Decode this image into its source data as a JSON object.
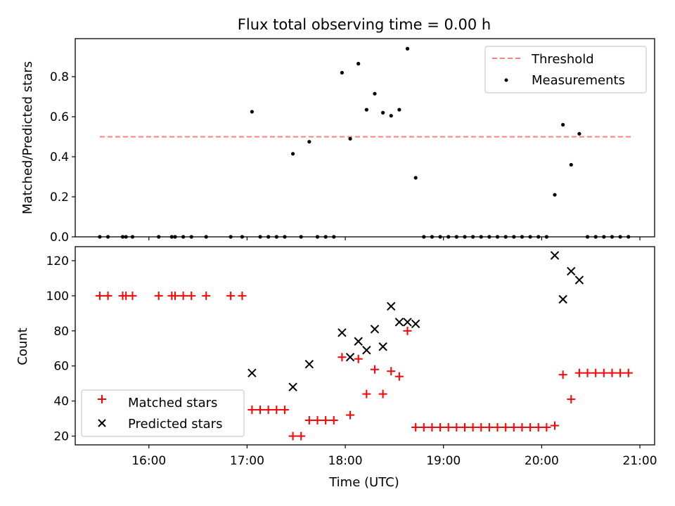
{
  "chart_data": [
    {
      "type": "scatter",
      "title": "Flux total observing time = 0.00 h",
      "xlabel": "",
      "ylabel": "Matched/Predicted stars",
      "xlim": [
        "15:15",
        "21:09"
      ],
      "ylim": [
        0,
        0.99
      ],
      "yticks": [
        0.0,
        0.2,
        0.4,
        0.6,
        0.8
      ],
      "legend_position": "top-right",
      "threshold": {
        "name": "Threshold",
        "value": 0.5,
        "x_range": [
          "15:30",
          "20:55"
        ],
        "color": "#ff7f7f",
        "style": "dashed"
      },
      "series": [
        {
          "name": "Measurements",
          "color": "#000000",
          "marker": "dot",
          "x": [
            "15:30",
            "15:35",
            "15:44",
            "15:46",
            "15:50",
            "16:06",
            "16:14",
            "16:16",
            "16:21",
            "16:26",
            "16:35",
            "16:50",
            "16:57",
            "17:03",
            "17:08",
            "17:13",
            "17:18",
            "17:23",
            "17:28",
            "17:33",
            "17:38",
            "17:43",
            "17:48",
            "17:53",
            "17:58",
            "18:03",
            "18:08",
            "18:13",
            "18:18",
            "18:23",
            "18:28",
            "18:33",
            "18:38",
            "18:43",
            "18:48",
            "18:53",
            "18:58",
            "19:03",
            "19:08",
            "19:13",
            "19:18",
            "19:23",
            "19:28",
            "19:33",
            "19:38",
            "19:43",
            "19:48",
            "19:53",
            "19:58",
            "20:03",
            "20:08",
            "20:13",
            "20:18",
            "20:23",
            "20:28",
            "20:33",
            "20:38",
            "20:43",
            "20:48",
            "20:53"
          ],
          "y": [
            0,
            0,
            0,
            0,
            0,
            0,
            0,
            0,
            0,
            0,
            0,
            0,
            0,
            0.625,
            0,
            0,
            0,
            0,
            0.415,
            0,
            0.475,
            0,
            0,
            0,
            0.82,
            0.49,
            0.865,
            0.635,
            0.715,
            0.62,
            0.605,
            0.635,
            0.94,
            0.295,
            0,
            0,
            0,
            0,
            0,
            0,
            0,
            0,
            0,
            0,
            0,
            0,
            0,
            0,
            0,
            0,
            0.21,
            0.56,
            0.36,
            0.515,
            0,
            0,
            0,
            0,
            0,
            0
          ]
        }
      ]
    },
    {
      "type": "scatter",
      "title": "",
      "xlabel": "Time (UTC)",
      "ylabel": "Count",
      "xlim": [
        "15:15",
        "21:09"
      ],
      "ylim": [
        15,
        128
      ],
      "yticks": [
        20,
        40,
        60,
        80,
        100,
        120
      ],
      "xticks": [
        "16:00",
        "17:00",
        "18:00",
        "19:00",
        "20:00",
        "21:00"
      ],
      "legend_position": "lower-left",
      "series": [
        {
          "name": "Matched stars",
          "color": "#ff0000",
          "marker": "plus",
          "x": [
            "15:30",
            "15:35",
            "15:44",
            "15:46",
            "15:50",
            "16:06",
            "16:14",
            "16:16",
            "16:21",
            "16:26",
            "16:35",
            "16:50",
            "16:57",
            "17:03",
            "17:08",
            "17:13",
            "17:18",
            "17:23",
            "17:28",
            "17:33",
            "17:38",
            "17:43",
            "17:48",
            "17:53",
            "17:58",
            "18:03",
            "18:08",
            "18:13",
            "18:18",
            "18:23",
            "18:28",
            "18:33",
            "18:38",
            "18:43",
            "18:48",
            "18:53",
            "18:58",
            "19:03",
            "19:08",
            "19:13",
            "19:18",
            "19:23",
            "19:28",
            "19:33",
            "19:38",
            "19:43",
            "19:48",
            "19:53",
            "19:58",
            "20:03",
            "20:08",
            "20:13",
            "20:18",
            "20:23",
            "20:28",
            "20:33",
            "20:38",
            "20:43",
            "20:48",
            "20:53"
          ],
          "y": [
            100,
            100,
            100,
            100,
            100,
            100,
            100,
            100,
            100,
            100,
            100,
            100,
            100,
            35,
            35,
            35,
            35,
            35,
            20,
            20,
            29,
            29,
            29,
            29,
            65,
            32,
            64,
            44,
            58,
            44,
            57,
            54,
            80,
            25,
            25,
            25,
            25,
            25,
            25,
            25,
            25,
            25,
            25,
            25,
            25,
            25,
            25,
            25,
            25,
            25,
            26,
            55,
            41,
            56,
            56,
            56,
            56,
            56,
            56,
            56
          ]
        },
        {
          "name": "Predicted stars",
          "color": "#000000",
          "marker": "x",
          "x": [
            "17:03",
            "17:28",
            "17:38",
            "17:58",
            "18:03",
            "18:08",
            "18:13",
            "18:18",
            "18:23",
            "18:28",
            "18:33",
            "18:38",
            "18:43",
            "20:08",
            "20:13",
            "20:18",
            "20:23"
          ],
          "y": [
            56,
            48,
            61,
            79,
            65,
            74,
            69,
            81,
            71,
            94,
            85,
            85,
            84,
            123,
            98,
            114,
            109
          ]
        }
      ]
    }
  ]
}
